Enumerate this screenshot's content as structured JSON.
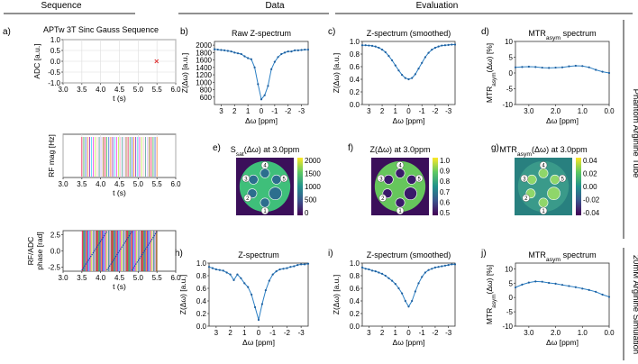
{
  "section_headers": {
    "sequence": "Sequence",
    "data": "Data",
    "evaluation": "Evaluation"
  },
  "row_labels": {
    "phantom": "Phantom Arginine Tube",
    "simulation": "20mM Arginine Simulation"
  },
  "colors": {
    "line": "#2a7fc4",
    "marker": "#1f5f9e",
    "cross": "#e03030",
    "map_bg": "#3b0f5a"
  },
  "chart_data": [
    {
      "id": "a1",
      "panel": "a)",
      "type": "scatter",
      "title": "APTw 3T Sinc Gauss Sequence",
      "xlabel": "t (s)",
      "ylabel": "ADC [a.u.]",
      "xlim": [
        3.0,
        6.0
      ],
      "ylim": [
        -1.0,
        1.0
      ],
      "xticks": [
        "3.0",
        "3.5",
        "4.0",
        "4.5",
        "5.0",
        "5.5",
        "6.0"
      ],
      "yticks": [
        "1.0",
        "0.5",
        "0.0",
        "-0.5",
        "-1.0"
      ],
      "points": [
        [
          5.49,
          0.0
        ]
      ]
    },
    {
      "id": "a2",
      "panel": "",
      "type": "line",
      "title": "",
      "xlabel": "t (s)",
      "ylabel": "RF mag [Hz]",
      "xlim": [
        3.0,
        6.0
      ],
      "pulse_start": 3.5,
      "pulse_end": 5.5,
      "pulse_count": 40,
      "xticks": [
        "3.0",
        "3.5",
        "4.0",
        "4.5",
        "5.0",
        "5.5",
        "6.0"
      ]
    },
    {
      "id": "a3",
      "panel": "",
      "type": "area",
      "title": "",
      "xlabel": "t (s)",
      "ylabel": "RF/ADC phase [rad]",
      "xlim": [
        3.0,
        6.0
      ],
      "ylim": [
        -3.1,
        3.1
      ],
      "xticks": [
        "3.0",
        "3.5",
        "4.0",
        "4.5",
        "5.0",
        "5.5",
        "6.0"
      ],
      "yticks": [
        "2.5",
        "0.0",
        "-2.5"
      ]
    },
    {
      "id": "b",
      "panel": "b)",
      "type": "line",
      "title": "Raw Z-spectrum",
      "xlabel": "Δω [ppm]",
      "ylabel": "Z(Δω) [a.u.]",
      "xlim": [
        3.5,
        -3.5
      ],
      "ylim": [
        400,
        2100
      ],
      "xticks": [
        "3",
        "2",
        "1",
        "0",
        "-1",
        "-2",
        "-3"
      ],
      "yticks": [
        "2000",
        "1800",
        "1600",
        "1400",
        "1200",
        "1000",
        "800",
        "600"
      ],
      "x": [
        3.5,
        3.25,
        3.0,
        2.75,
        2.5,
        2.25,
        2.0,
        1.75,
        1.5,
        1.25,
        1.0,
        0.75,
        0.5,
        0.25,
        0.0,
        -0.25,
        -0.5,
        -0.75,
        -1.0,
        -1.25,
        -1.5,
        -1.75,
        -2.0,
        -2.25,
        -2.5,
        -2.75,
        -3.0,
        -3.25,
        -3.5
      ],
      "y": [
        1890,
        1880,
        1870,
        1860,
        1845,
        1830,
        1800,
        1780,
        1760,
        1700,
        1650,
        1620,
        1400,
        950,
        540,
        650,
        900,
        1350,
        1550,
        1680,
        1760,
        1800,
        1830,
        1830,
        1860,
        1860,
        1870,
        1880,
        1880
      ]
    },
    {
      "id": "c",
      "panel": "c)",
      "type": "line",
      "title": "Z-spectrum (smoothed)",
      "xlabel": "Δω [ppm]",
      "ylabel": "Z(Δω) [a.u.]",
      "xlim": [
        3.5,
        -3.5
      ],
      "ylim": [
        0.0,
        1.0
      ],
      "xticks": [
        "3",
        "2",
        "1",
        "0",
        "-1",
        "-2",
        "-3"
      ],
      "yticks": [
        "1.0",
        "0.8",
        "0.6",
        "0.4",
        "0.2",
        "0.0"
      ],
      "x": [
        3.5,
        3.25,
        3.0,
        2.75,
        2.5,
        2.25,
        2.0,
        1.75,
        1.5,
        1.25,
        1.0,
        0.75,
        0.5,
        0.25,
        0.0,
        -0.25,
        -0.5,
        -0.75,
        -1.0,
        -1.25,
        -1.5,
        -1.75,
        -2.0,
        -2.25,
        -2.5,
        -2.75,
        -3.0,
        -3.25,
        -3.5
      ],
      "y": [
        0.94,
        0.94,
        0.935,
        0.93,
        0.92,
        0.9,
        0.87,
        0.83,
        0.77,
        0.7,
        0.62,
        0.54,
        0.47,
        0.42,
        0.4,
        0.42,
        0.48,
        0.57,
        0.66,
        0.75,
        0.82,
        0.87,
        0.9,
        0.92,
        0.935,
        0.94,
        0.945,
        0.95,
        0.95
      ]
    },
    {
      "id": "d",
      "panel": "d)",
      "type": "line",
      "title": "MTR",
      "title_sub": "asym",
      "title_suffix": " spectrum",
      "xlabel": "Δω [ppm]",
      "ylabel": "MTR",
      "ylabel_sub": "asym",
      "ylabel_suffix": "(Δω) [%]",
      "xlim": [
        3.5,
        0.0
      ],
      "ylim": [
        -10,
        10
      ],
      "xticks": [
        "3.0",
        "2.0",
        "1.0",
        "0.0"
      ],
      "yticks": [
        "10",
        "5",
        "0",
        "-5",
        "-10"
      ],
      "x": [
        3.5,
        3.25,
        3.0,
        2.75,
        2.5,
        2.25,
        2.0,
        1.75,
        1.5,
        1.25,
        1.0,
        0.75,
        0.5,
        0.25,
        0.0
      ],
      "y": [
        1.8,
        1.9,
        2.0,
        1.9,
        1.7,
        1.6,
        1.7,
        1.8,
        2.1,
        2.3,
        2.2,
        1.8,
        1.0,
        0.4,
        0.0
      ]
    },
    {
      "id": "e",
      "panel": "e)",
      "type": "heatmap",
      "title": "S",
      "title_sub": "sat",
      "title_suffix": "(Δω) at 3.0ppm",
      "colorbar_ticks": [
        "2000",
        "1500",
        "1000",
        "500",
        "0"
      ],
      "tube_labels": [
        "1",
        "2",
        "3",
        "4",
        "5"
      ]
    },
    {
      "id": "f",
      "panel": "f)",
      "type": "heatmap",
      "title": "Z(Δω) at 3.0ppm",
      "colorbar_ticks": [
        "1.0",
        "0.9",
        "0.8",
        "0.7",
        "0.6",
        "0.5"
      ],
      "tube_labels": [
        "1",
        "2",
        "3",
        "4",
        "5"
      ]
    },
    {
      "id": "g",
      "panel": "g)",
      "type": "heatmap",
      "title": "MTR",
      "title_sub": "asym",
      "title_suffix": "(Δω) at 3.0ppm",
      "colorbar_ticks": [
        "0.04",
        "0.02",
        "0.00",
        "-0.02",
        "-0.04"
      ],
      "tube_labels": [
        "1",
        "2",
        "3",
        "4",
        "5"
      ]
    },
    {
      "id": "h",
      "panel": "h)",
      "type": "line",
      "title": "Z-spectrum",
      "xlabel": "Δω [ppm]",
      "ylabel": "Z(Δω) [a.u.]",
      "xlim": [
        3.5,
        -3.5
      ],
      "ylim": [
        0.0,
        1.0
      ],
      "xticks": [
        "3",
        "2",
        "1",
        "0",
        "-1",
        "-2",
        "-3"
      ],
      "yticks": [
        "1.0",
        "0.8",
        "0.6",
        "0.4",
        "0.2",
        "0.0"
      ],
      "x": [
        3.5,
        3.25,
        3.0,
        2.75,
        2.5,
        2.25,
        2.0,
        1.75,
        1.5,
        1.25,
        1.0,
        0.75,
        0.5,
        0.25,
        0.0,
        -0.25,
        -0.5,
        -0.75,
        -1.0,
        -1.25,
        -1.5,
        -1.75,
        -2.0,
        -2.25,
        -2.5,
        -2.75,
        -3.0,
        -3.25,
        -3.5
      ],
      "y": [
        0.94,
        0.92,
        0.9,
        0.89,
        0.88,
        0.85,
        0.82,
        0.73,
        0.82,
        0.76,
        0.68,
        0.62,
        0.5,
        0.3,
        0.1,
        0.35,
        0.57,
        0.72,
        0.82,
        0.87,
        0.9,
        0.91,
        0.92,
        0.94,
        0.95,
        0.97,
        0.98,
        0.98,
        0.99
      ]
    },
    {
      "id": "i",
      "panel": "i)",
      "type": "line",
      "title": "Z-spectrum (smoothed)",
      "xlabel": "Δω [ppm]",
      "ylabel": "Z(Δω) [a.u.]",
      "xlim": [
        3.5,
        -3.5
      ],
      "ylim": [
        0.0,
        1.0
      ],
      "xticks": [
        "3",
        "2",
        "1",
        "0",
        "-1",
        "-2",
        "-3"
      ],
      "yticks": [
        "1.0",
        "0.8",
        "0.6",
        "0.4",
        "0.2",
        "0.0"
      ],
      "x": [
        3.5,
        3.25,
        3.0,
        2.75,
        2.5,
        2.25,
        2.0,
        1.75,
        1.5,
        1.25,
        1.0,
        0.75,
        0.5,
        0.25,
        0.0,
        -0.25,
        -0.5,
        -0.75,
        -1.0,
        -1.25,
        -1.5,
        -1.75,
        -2.0,
        -2.25,
        -2.5,
        -2.75,
        -3.0,
        -3.25,
        -3.5
      ],
      "y": [
        0.93,
        0.91,
        0.9,
        0.88,
        0.87,
        0.85,
        0.83,
        0.8,
        0.76,
        0.72,
        0.67,
        0.6,
        0.52,
        0.4,
        0.31,
        0.4,
        0.55,
        0.68,
        0.78,
        0.85,
        0.89,
        0.91,
        0.93,
        0.94,
        0.95,
        0.96,
        0.97,
        0.98,
        0.98
      ]
    },
    {
      "id": "j",
      "panel": "j)",
      "type": "line",
      "title": "MTR",
      "title_sub": "asym",
      "title_suffix": " spectrum",
      "xlabel": "Δω [ppm]",
      "ylabel": "MTR",
      "ylabel_sub": "asym",
      "ylabel_suffix": "(Δω) [%]",
      "xlim": [
        3.5,
        0.0
      ],
      "ylim": [
        -10,
        12
      ],
      "xticks": [
        "3.0",
        "2.0",
        "1.0",
        "0.0"
      ],
      "yticks": [
        "10",
        "5",
        "0",
        "-5",
        "-10"
      ],
      "x": [
        3.5,
        3.25,
        3.0,
        2.75,
        2.5,
        2.25,
        2.0,
        1.75,
        1.5,
        1.25,
        1.0,
        0.75,
        0.5,
        0.25,
        0.0
      ],
      "y": [
        3.5,
        4.5,
        5.2,
        5.6,
        5.5,
        5.1,
        4.8,
        4.4,
        4.0,
        3.6,
        3.1,
        2.6,
        2.0,
        1.0,
        0.2
      ]
    }
  ]
}
